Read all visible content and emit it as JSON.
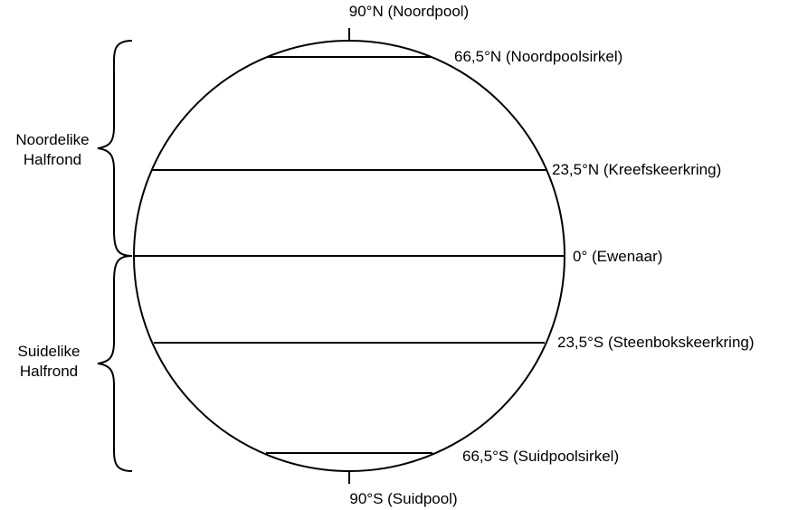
{
  "diagram": {
    "poles": {
      "north": "90°N (Noordpool)",
      "south": "90°S (Suidpool)"
    },
    "latitudes": [
      {
        "label": "66,5°N (Noordpoolsirkel)",
        "degrees": 66.5
      },
      {
        "label": "23,5°N (Kreefskeerkring)",
        "degrees": 23.5
      },
      {
        "label": "0° (Ewenaar)",
        "degrees": 0
      },
      {
        "label": "23,5°S (Steenbokskeerkring)",
        "degrees": -23.5
      },
      {
        "label": "66,5°S (Suidpoolsirkel)",
        "degrees": -66.5
      }
    ],
    "hemispheres": {
      "north": {
        "line1": "Noordelike",
        "line2": "Halfrond"
      },
      "south": {
        "line1": "Suidelike",
        "line2": "Halfrond"
      }
    },
    "colors": {
      "stroke": "#000000",
      "background": "#ffffff"
    }
  }
}
